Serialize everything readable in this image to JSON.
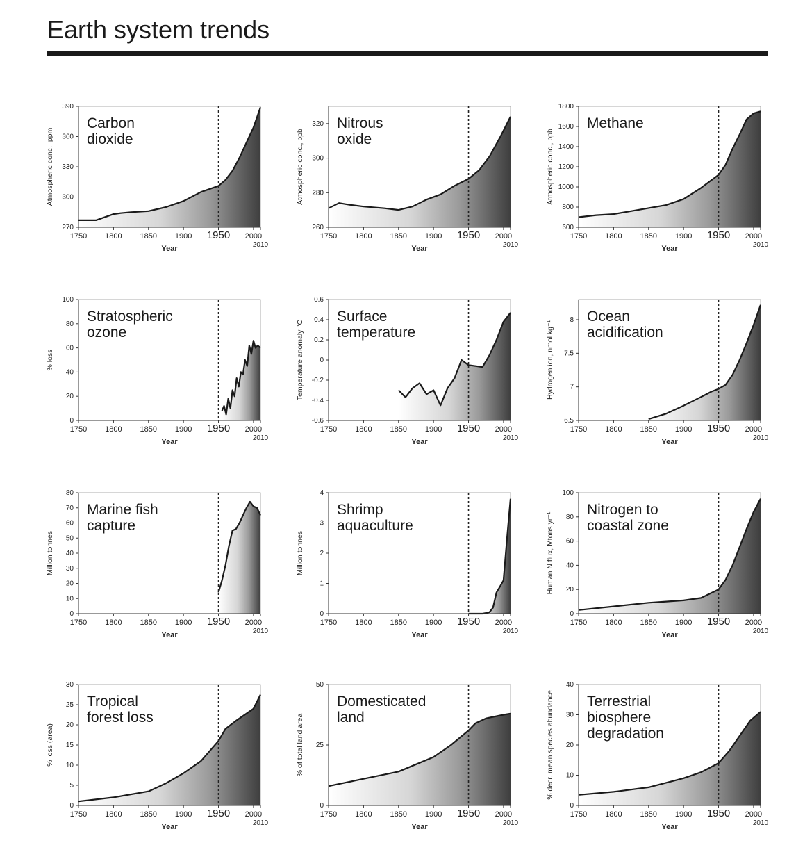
{
  "page": {
    "title": "Earth system trends"
  },
  "chart_data": [
    {
      "type": "area",
      "title": "Carbon dioxide",
      "title_lines": [
        "Carbon",
        "dioxide"
      ],
      "ylabel": "Atmospheric conc., ppm",
      "xlabel": "Year",
      "xlim": [
        1750,
        2010
      ],
      "ylim": [
        270,
        390
      ],
      "yticks": [
        270,
        300,
        330,
        360,
        390
      ],
      "xticks": [
        "1750",
        "1800",
        "1850",
        "1900",
        "1950",
        "2000"
      ],
      "xend_label": "2010",
      "marker_year": 1950,
      "series": [
        {
          "name": "Carbon dioxide",
          "x": [
            1750,
            1775,
            1800,
            1810,
            1825,
            1850,
            1875,
            1900,
            1925,
            1950,
            1960,
            1970,
            1980,
            1990,
            2000,
            2010
          ],
          "y": [
            277,
            277,
            283,
            284,
            285,
            286,
            290,
            296,
            305,
            311,
            317,
            326,
            339,
            354,
            369,
            389
          ]
        }
      ]
    },
    {
      "type": "area",
      "title": "Nitrous oxide",
      "title_lines": [
        "Nitrous",
        "oxide"
      ],
      "ylabel": "Atmospheric conc., ppb",
      "xlabel": "Year",
      "xlim": [
        1750,
        2010
      ],
      "ylim": [
        260,
        330
      ],
      "yticks": [
        260,
        280,
        300,
        320
      ],
      "xticks": [
        "1750",
        "1800",
        "1850",
        "1900",
        "1950",
        "2000"
      ],
      "xend_label": "2010",
      "marker_year": 1950,
      "series": [
        {
          "name": "Nitrous oxide",
          "x": [
            1750,
            1765,
            1780,
            1800,
            1830,
            1850,
            1870,
            1890,
            1910,
            1930,
            1950,
            1965,
            1980,
            1995,
            2010
          ],
          "y": [
            271,
            274,
            273,
            272,
            271,
            270,
            272,
            276,
            279,
            284,
            288,
            293,
            301,
            312,
            324
          ]
        }
      ]
    },
    {
      "type": "area",
      "title": "Methane",
      "title_lines": [
        "Methane"
      ],
      "ylabel": "Atmospheric conc., ppb",
      "xlabel": "Year",
      "xlim": [
        1750,
        2010
      ],
      "ylim": [
        600,
        1800
      ],
      "yticks": [
        600,
        800,
        1000,
        1200,
        1400,
        1600,
        1800
      ],
      "xticks": [
        "1750",
        "1800",
        "1850",
        "1900",
        "1950",
        "2000"
      ],
      "xend_label": "2010",
      "marker_year": 1950,
      "series": [
        {
          "name": "Methane",
          "x": [
            1750,
            1775,
            1800,
            1825,
            1850,
            1875,
            1900,
            1925,
            1950,
            1960,
            1970,
            1980,
            1990,
            2000,
            2010
          ],
          "y": [
            700,
            720,
            730,
            760,
            790,
            820,
            880,
            990,
            1120,
            1220,
            1380,
            1520,
            1670,
            1730,
            1750
          ]
        }
      ]
    },
    {
      "type": "area",
      "title": "Stratospheric ozone",
      "title_lines": [
        "Stratospheric",
        "ozone"
      ],
      "ylabel": "% loss",
      "xlabel": "Year",
      "xlim": [
        1750,
        2010
      ],
      "ylim": [
        0,
        100
      ],
      "yticks": [
        0,
        20,
        40,
        60,
        80,
        100
      ],
      "xticks": [
        "1750",
        "1800",
        "1850",
        "1900",
        "1950",
        "2000"
      ],
      "xend_label": "2010",
      "marker_year": 1950,
      "series": [
        {
          "name": "Stratospheric ozone",
          "x": [
            1955,
            1958,
            1961,
            1964,
            1967,
            1970,
            1973,
            1976,
            1979,
            1982,
            1985,
            1988,
            1991,
            1994,
            1997,
            2000,
            2003,
            2006,
            2010
          ],
          "y": [
            8,
            12,
            5,
            18,
            10,
            25,
            20,
            35,
            28,
            40,
            38,
            50,
            45,
            62,
            55,
            66,
            60,
            62,
            60
          ]
        }
      ]
    },
    {
      "type": "area",
      "title": "Surface temperature",
      "title_lines": [
        "Surface",
        "temperature"
      ],
      "ylabel": "Temperature anomaly °C",
      "xlabel": "Year",
      "xlim": [
        1750,
        2010
      ],
      "ylim": [
        -0.6,
        0.6
      ],
      "yticks": [
        -0.6,
        -0.4,
        -0.2,
        0,
        0.2,
        0.4,
        0.6
      ],
      "xticks": [
        "1750",
        "1800",
        "1850",
        "1900",
        "1950",
        "2000"
      ],
      "xend_label": "2010",
      "marker_year": 1950,
      "series": [
        {
          "name": "Surface temperature",
          "x": [
            1850,
            1860,
            1870,
            1880,
            1890,
            1900,
            1910,
            1920,
            1930,
            1940,
            1950,
            1960,
            1970,
            1980,
            1990,
            2000,
            2010
          ],
          "y": [
            -0.3,
            -0.37,
            -0.28,
            -0.23,
            -0.34,
            -0.3,
            -0.45,
            -0.28,
            -0.18,
            0,
            -0.05,
            -0.06,
            -0.07,
            0.05,
            0.2,
            0.38,
            0.47
          ]
        }
      ]
    },
    {
      "type": "area",
      "title": "Ocean acidification",
      "title_lines": [
        "Ocean",
        "acidification"
      ],
      "ylabel": "Hydrogen ion, nmol kg⁻¹",
      "xlabel": "Year",
      "xlim": [
        1750,
        2010
      ],
      "ylim": [
        6.5,
        8.3
      ],
      "yticks": [
        6.5,
        7.0,
        7.5,
        8.0
      ],
      "xticks": [
        "1750",
        "1800",
        "1850",
        "1900",
        "1950",
        "2000"
      ],
      "xend_label": "2010",
      "marker_year": 1950,
      "series": [
        {
          "name": "Ocean acidification",
          "x": [
            1850,
            1875,
            1900,
            1925,
            1940,
            1950,
            1960,
            1970,
            1980,
            1990,
            2000,
            2010
          ],
          "y": [
            6.52,
            6.6,
            6.72,
            6.85,
            6.93,
            6.97,
            7.03,
            7.18,
            7.4,
            7.65,
            7.92,
            8.22
          ]
        }
      ]
    },
    {
      "type": "area",
      "title": "Marine fish capture",
      "title_lines": [
        "Marine fish",
        "capture"
      ],
      "ylabel": "Million tonnes",
      "xlabel": "Year",
      "xlim": [
        1750,
        2010
      ],
      "ylim": [
        0,
        80
      ],
      "yticks": [
        0,
        10,
        20,
        30,
        40,
        50,
        60,
        70,
        80
      ],
      "xticks": [
        "1750",
        "1800",
        "1850",
        "1900",
        "1950",
        "2000"
      ],
      "xend_label": "2010",
      "marker_year": 1950,
      "series": [
        {
          "name": "Marine fish capture",
          "x": [
            1950,
            1955,
            1960,
            1965,
            1970,
            1975,
            1980,
            1985,
            1990,
            1995,
            2000,
            2005,
            2010
          ],
          "y": [
            14,
            22,
            32,
            45,
            55,
            56,
            60,
            65,
            70,
            74,
            71,
            70,
            65
          ]
        }
      ]
    },
    {
      "type": "area",
      "title": "Shrimp aquaculture",
      "title_lines": [
        "Shrimp",
        "aquaculture"
      ],
      "ylabel": "Million tonnes",
      "xlabel": "Year",
      "xlim": [
        1750,
        2010
      ],
      "ylim": [
        0,
        4
      ],
      "yticks": [
        0,
        1,
        2,
        3,
        4
      ],
      "xticks": [
        "1750",
        "1800",
        "1850",
        "1900",
        "1950",
        "2000"
      ],
      "xend_label": "2010",
      "marker_year": 1950,
      "series": [
        {
          "name": "Shrimp aquaculture",
          "x": [
            1950,
            1970,
            1975,
            1980,
            1985,
            1990,
            1995,
            2000,
            2005,
            2010
          ],
          "y": [
            0,
            0,
            0.02,
            0.05,
            0.2,
            0.7,
            0.9,
            1.1,
            2.5,
            3.8
          ]
        }
      ]
    },
    {
      "type": "area",
      "title": "Nitrogen to coastal zone",
      "title_lines": [
        "Nitrogen to",
        "coastal zone"
      ],
      "ylabel": "Human N flux, Mtons yr⁻¹",
      "xlabel": "Year",
      "xlim": [
        1750,
        2010
      ],
      "ylim": [
        0,
        100
      ],
      "yticks": [
        0,
        20,
        40,
        60,
        80,
        100
      ],
      "xticks": [
        "1750",
        "1800",
        "1850",
        "1900",
        "1950",
        "2000"
      ],
      "xend_label": "2010",
      "marker_year": 1950,
      "series": [
        {
          "name": "Nitrogen to coastal zone",
          "x": [
            1750,
            1800,
            1850,
            1875,
            1900,
            1925,
            1950,
            1960,
            1970,
            1980,
            1990,
            2000,
            2010
          ],
          "y": [
            3,
            6,
            9,
            10,
            11,
            13,
            20,
            28,
            40,
            55,
            70,
            84,
            95
          ]
        }
      ]
    },
    {
      "type": "area",
      "title": "Tropical forest loss",
      "title_lines": [
        "Tropical",
        "forest loss"
      ],
      "ylabel": "% loss (area)",
      "xlabel": "Year",
      "xlim": [
        1750,
        2010
      ],
      "ylim": [
        0,
        30
      ],
      "yticks": [
        0,
        5,
        10,
        15,
        20,
        25,
        30
      ],
      "xticks": [
        "1750",
        "1800",
        "1850",
        "1900",
        "1950",
        "2000"
      ],
      "xend_label": "2010",
      "marker_year": 1950,
      "series": [
        {
          "name": "Tropical forest loss",
          "x": [
            1750,
            1800,
            1850,
            1875,
            1900,
            1925,
            1950,
            1960,
            1975,
            2000,
            2010
          ],
          "y": [
            1,
            2,
            3.5,
            5.5,
            8,
            11,
            16,
            19,
            21,
            24,
            27.5
          ]
        }
      ]
    },
    {
      "type": "area",
      "title": "Domesticated land",
      "title_lines": [
        "Domesticated",
        "land"
      ],
      "ylabel": "% of total land area",
      "xlabel": "Year",
      "xlim": [
        1750,
        2010
      ],
      "ylim": [
        0,
        50
      ],
      "yticks": [
        0,
        25,
        50
      ],
      "xticks": [
        "1750",
        "1800",
        "1850",
        "1900",
        "1950",
        "2000"
      ],
      "xend_label": "2010",
      "marker_year": 1950,
      "series": [
        {
          "name": "Domesticated land",
          "x": [
            1750,
            1800,
            1850,
            1875,
            1900,
            1925,
            1950,
            1960,
            1975,
            2000,
            2010
          ],
          "y": [
            8,
            11,
            14,
            17,
            20,
            25,
            31,
            34,
            36,
            37.5,
            38
          ]
        }
      ]
    },
    {
      "type": "area",
      "title": "Terrestrial biosphere degradation",
      "title_lines": [
        "Terrestrial",
        "biosphere",
        "degradation"
      ],
      "ylabel": "% decr. mean species abundance",
      "xlabel": "Year",
      "xlim": [
        1750,
        2010
      ],
      "ylim": [
        0,
        40
      ],
      "yticks": [
        0,
        10,
        20,
        30,
        40
      ],
      "xticks": [
        "1750",
        "1800",
        "1850",
        "1900",
        "1950",
        "2000"
      ],
      "xend_label": "2010",
      "marker_year": 1950,
      "series": [
        {
          "name": "Terrestrial biosphere degradation",
          "x": [
            1750,
            1800,
            1850,
            1900,
            1925,
            1950,
            1965,
            1980,
            1995,
            2010
          ],
          "y": [
            3.5,
            4.5,
            6,
            9,
            11,
            14,
            18,
            23,
            28,
            31
          ]
        }
      ]
    }
  ]
}
